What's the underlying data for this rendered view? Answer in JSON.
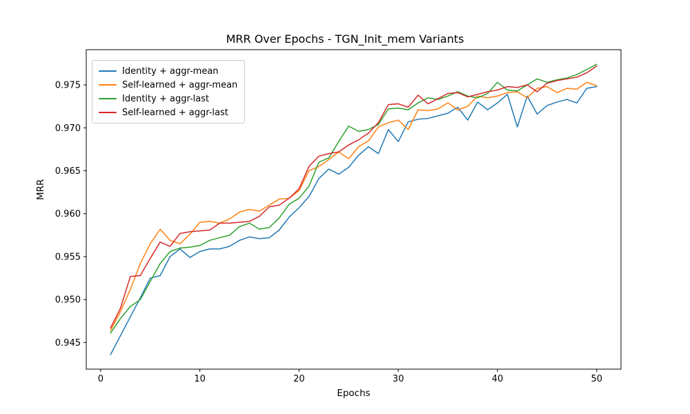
{
  "figure": {
    "title": "MRR Over Epochs - TGN_Init_mem Variants",
    "xlabel": "Epochs",
    "ylabel": "MRR",
    "background_color": "#ffffff",
    "spine_color": "#000000"
  },
  "chart_data": {
    "type": "line",
    "title": "MRR Over Epochs - TGN_Init_mem Variants",
    "xlabel": "Epochs",
    "ylabel": "MRR",
    "grid": false,
    "legend_position": "upper left",
    "xlim": [
      -1.45,
      52.45
    ],
    "ylim": [
      0.9419,
      0.9791
    ],
    "xticks": [
      0,
      10,
      20,
      30,
      40,
      50
    ],
    "yticks": [
      0.945,
      0.95,
      0.955,
      0.96,
      0.965,
      0.97,
      0.975
    ],
    "ytick_decimals": 3,
    "x": [
      1,
      2,
      3,
      4,
      5,
      6,
      7,
      8,
      9,
      10,
      11,
      12,
      13,
      14,
      15,
      16,
      17,
      18,
      19,
      20,
      21,
      22,
      23,
      24,
      25,
      26,
      27,
      28,
      29,
      30,
      31,
      32,
      33,
      34,
      35,
      36,
      37,
      38,
      39,
      40,
      41,
      42,
      43,
      44,
      45,
      46,
      47,
      48,
      49,
      50
    ],
    "series": [
      {
        "name": "Identity + aggr-mean",
        "color": "#1f77b4",
        "values": [
          0.9436,
          0.9458,
          0.948,
          0.9502,
          0.9525,
          0.9528,
          0.955,
          0.9559,
          0.9549,
          0.9556,
          0.9559,
          0.9559,
          0.9562,
          0.9569,
          0.9573,
          0.9571,
          0.9572,
          0.9581,
          0.9596,
          0.9607,
          0.962,
          0.9641,
          0.9652,
          0.9646,
          0.9654,
          0.9668,
          0.9678,
          0.967,
          0.9698,
          0.9684,
          0.9707,
          0.971,
          0.9711,
          0.9714,
          0.9717,
          0.9724,
          0.9709,
          0.973,
          0.9721,
          0.9729,
          0.9739,
          0.9701,
          0.9737,
          0.9716,
          0.9726,
          0.973,
          0.9733,
          0.9729,
          0.9746,
          0.9748
        ]
      },
      {
        "name": "Self-learned + aggr-mean",
        "color": "#ff7f0e",
        "values": [
          0.9464,
          0.9486,
          0.9512,
          0.9542,
          0.9565,
          0.9582,
          0.9569,
          0.9565,
          0.9576,
          0.959,
          0.9591,
          0.9589,
          0.9594,
          0.9602,
          0.9605,
          0.9603,
          0.961,
          0.9617,
          0.9618,
          0.9627,
          0.965,
          0.9655,
          0.9663,
          0.9672,
          0.9664,
          0.9678,
          0.9685,
          0.9701,
          0.9706,
          0.9709,
          0.9698,
          0.9721,
          0.972,
          0.9722,
          0.9729,
          0.9721,
          0.9725,
          0.9737,
          0.9735,
          0.9737,
          0.9741,
          0.9742,
          0.9735,
          0.9746,
          0.9748,
          0.9741,
          0.9746,
          0.9745,
          0.9753,
          0.9749
        ]
      },
      {
        "name": "Identity + aggr-last",
        "color": "#2ca02c",
        "values": [
          0.9461,
          0.9478,
          0.9492,
          0.95,
          0.9521,
          0.9542,
          0.9556,
          0.956,
          0.9561,
          0.9563,
          0.9569,
          0.9572,
          0.9575,
          0.9585,
          0.9589,
          0.9582,
          0.9584,
          0.9595,
          0.9611,
          0.9618,
          0.9632,
          0.966,
          0.9665,
          0.9684,
          0.9702,
          0.9696,
          0.9698,
          0.9704,
          0.9722,
          0.9723,
          0.9721,
          0.9729,
          0.9735,
          0.9733,
          0.9737,
          0.9742,
          0.9737,
          0.9735,
          0.974,
          0.9753,
          0.9744,
          0.9743,
          0.975,
          0.9757,
          0.9753,
          0.9756,
          0.9758,
          0.9762,
          0.9768,
          0.9774
        ]
      },
      {
        "name": "Self-learned + aggr-last",
        "color": "#d62728",
        "values": [
          0.9467,
          0.949,
          0.9527,
          0.9528,
          0.9548,
          0.9567,
          0.9562,
          0.9577,
          0.9579,
          0.958,
          0.9581,
          0.9589,
          0.9589,
          0.959,
          0.9591,
          0.9597,
          0.9608,
          0.961,
          0.9618,
          0.9629,
          0.9655,
          0.9667,
          0.967,
          0.9672,
          0.968,
          0.9686,
          0.9694,
          0.9706,
          0.9727,
          0.9728,
          0.9724,
          0.9738,
          0.9728,
          0.9734,
          0.974,
          0.9741,
          0.9736,
          0.9739,
          0.9742,
          0.9744,
          0.9748,
          0.9747,
          0.975,
          0.9742,
          0.9752,
          0.9755,
          0.9757,
          0.9759,
          0.9764,
          0.9772
        ]
      }
    ]
  }
}
